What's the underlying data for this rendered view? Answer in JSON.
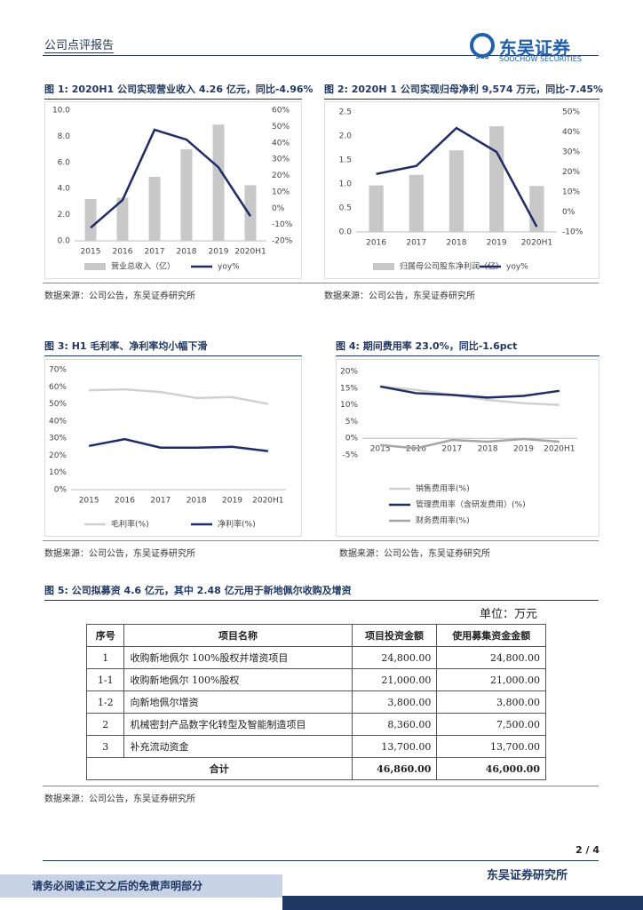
{
  "header": {
    "report_type": "公司点评报告",
    "logo_mark": "SCS",
    "logo_cn": "东吴证券",
    "logo_en": "SOOCHOW SECURITIES"
  },
  "chart_data": [
    {
      "type": "combo",
      "title": "图 1: 2020H1 公司实现营业收入 4.26 亿元，同比-4.96%",
      "categories": [
        "2015",
        "2016",
        "2017",
        "2018",
        "2019",
        "2020H1"
      ],
      "series": [
        {
          "name": "营业总收入（亿）",
          "type": "bar",
          "color": "#c8c8c8",
          "values": [
            3.2,
            3.3,
            4.9,
            7.0,
            8.9,
            4.26
          ]
        },
        {
          "name": "yoy%",
          "type": "line",
          "axis": "y2",
          "color": "#1f2d66",
          "values": [
            -12,
            5,
            48,
            42,
            25,
            -4.96
          ]
        }
      ],
      "ylim": [
        0,
        10
      ],
      "yticks": [
        {
          "value": 0,
          "label": "0.0"
        },
        {
          "value": 2,
          "label": "2.0"
        },
        {
          "value": 4,
          "label": "4.0"
        },
        {
          "value": 6,
          "label": "6.0"
        },
        {
          "value": 8,
          "label": "8.0"
        },
        {
          "value": 10,
          "label": "10.0"
        }
      ],
      "y2lim": [
        -20,
        60
      ],
      "y2ticks": [
        {
          "value": -20,
          "label": "-20%"
        },
        {
          "value": -10,
          "label": "-10%"
        },
        {
          "value": 0,
          "label": "0%"
        },
        {
          "value": 10,
          "label": "10%"
        },
        {
          "value": 20,
          "label": "20%"
        },
        {
          "value": 30,
          "label": "30%"
        },
        {
          "value": 40,
          "label": "40%"
        },
        {
          "value": 50,
          "label": "50%"
        },
        {
          "value": 60,
          "label": "60%"
        }
      ],
      "grid": false,
      "legend": "bottom",
      "source": "数据来源：公司公告，东吴证券研究所"
    },
    {
      "type": "combo",
      "title": "图 2: 2020H 1 公司实现归母净利 9,574 万元，同比-7.45%",
      "categories": [
        "2016",
        "2017",
        "2018",
        "2019",
        "2020H1"
      ],
      "series": [
        {
          "name": "归属母公司股东净利润（亿）",
          "type": "bar",
          "color": "#c8c8c8",
          "values": [
            0.97,
            1.19,
            1.7,
            2.2,
            0.9574
          ]
        },
        {
          "name": "yoy%",
          "type": "line",
          "axis": "y2",
          "color": "#1f2d66",
          "values": [
            19,
            23,
            42,
            30,
            -7.45
          ]
        }
      ],
      "ylim": [
        0,
        2.5
      ],
      "yticks": [
        {
          "value": 0,
          "label": "0.0"
        },
        0.5,
        {
          "value": 1,
          "label": "1.0"
        },
        1.5,
        {
          "value": 2,
          "label": "2.0"
        },
        2.5
      ],
      "y2lim": [
        -10,
        50
      ],
      "y2ticks": [
        {
          "value": -10,
          "label": "-10%"
        },
        {
          "value": 0,
          "label": "0%"
        },
        {
          "value": 10,
          "label": "10%"
        },
        {
          "value": 20,
          "label": "20%"
        },
        {
          "value": 30,
          "label": "30%"
        },
        {
          "value": 40,
          "label": "40%"
        },
        {
          "value": 50,
          "label": "50%"
        }
      ],
      "grid": false,
      "legend": "bottom",
      "source": "数据来源：公司公告，东吴证券研究所"
    },
    {
      "type": "line",
      "title": "图 3:  H1 毛利率、净利率均小幅下滑",
      "categories": [
        "2015",
        "2016",
        "2017",
        "2018",
        "2019",
        "2020H1"
      ],
      "series": [
        {
          "name": "毛利率(%)",
          "color": "#d0d0d0",
          "values": [
            58,
            58.5,
            57,
            53.5,
            54,
            50
          ]
        },
        {
          "name": "净利率(%)",
          "color": "#1f2d66",
          "values": [
            25.5,
            29.5,
            24.5,
            24.5,
            25,
            22.5
          ]
        }
      ],
      "ylim": [
        0,
        70
      ],
      "yticks": [
        {
          "value": 0,
          "label": "0%"
        },
        {
          "value": 10,
          "label": "10%"
        },
        {
          "value": 20,
          "label": "20%"
        },
        {
          "value": 30,
          "label": "30%"
        },
        {
          "value": 40,
          "label": "40%"
        },
        {
          "value": 50,
          "label": "50%"
        },
        {
          "value": 60,
          "label": "60%"
        },
        {
          "value": 70,
          "label": "70%"
        }
      ],
      "grid": false,
      "legend": "bottom",
      "source": "数据来源：公司公告，东吴证券研究所"
    },
    {
      "type": "line",
      "title": "图 4:  期间费用率 23.0%，同比-1.6pct",
      "categories": [
        "2015",
        "2016",
        "2017",
        "2018",
        "2019",
        "2020H1"
      ],
      "series": [
        {
          "name": "销售费用率(%)",
          "color": "#d0d0d0",
          "values": [
            15.5,
            14.5,
            13,
            11.5,
            10.5,
            10
          ]
        },
        {
          "name": "管理费用率（含研发费用）(%)",
          "color": "#1f2d66",
          "values": [
            15.5,
            13.5,
            13,
            12.2,
            12.7,
            14.2
          ]
        },
        {
          "name": "财务费用率(%)",
          "color": "#a6a6a6",
          "values": [
            -2,
            -3,
            -0.5,
            -1,
            -0.2,
            -1
          ]
        }
      ],
      "ylim": [
        -5,
        20
      ],
      "yticks": [
        {
          "value": -5,
          "label": "-5%"
        },
        {
          "value": 0,
          "label": "0%"
        },
        {
          "value": 5,
          "label": "5%"
        },
        {
          "value": 10,
          "label": "10%"
        },
        {
          "value": 15,
          "label": "15%"
        },
        {
          "value": 20,
          "label": "20%"
        }
      ],
      "grid": false,
      "legend": "bottom",
      "source": "数据来源：公司公告，东吴证券研究所"
    }
  ],
  "table": {
    "title": "图 5:  公司拟募资 4.6 亿元，其中 2.48 亿元用于新地佩尔收购及增资",
    "unit": "单位：万元",
    "columns": [
      "序号",
      "项目名称",
      "项目投资金额",
      "使用募集资金金额"
    ],
    "rows": [
      [
        "1",
        "收购新地佩尔 100%股权并增资项目",
        "24,800.00",
        "24,800.00"
      ],
      [
        "1-1",
        "收购新地佩尔 100%股权",
        "21,000.00",
        "21,000.00"
      ],
      [
        "1-2",
        "向新地佩尔增资",
        "3,800.00",
        "3,800.00"
      ],
      [
        "2",
        "机械密封产品数字化转型及智能制造项目",
        "8,360.00",
        "7,500.00"
      ],
      [
        "3",
        "补充流动资金",
        "13,700.00",
        "13,700.00"
      ]
    ],
    "total": [
      "合计",
      "46,860.00",
      "46,000.00"
    ],
    "source": "数据来源：公司公告，东吴证券研究所"
  },
  "footer": {
    "page": "2 / 4",
    "disclaimer": "请务必阅读正文之后的免责声明部分",
    "institute": "东吴证券研究所"
  }
}
